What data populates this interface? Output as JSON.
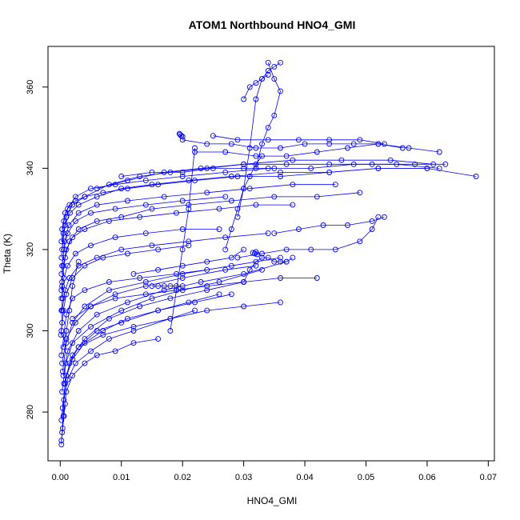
{
  "chart_data": {
    "type": "scatter",
    "mode": "lines+markers",
    "title": "ATOM1 Northbound HNO4_GMI",
    "xlabel": "HNO4_GMI",
    "ylabel": "Theta (K)",
    "xlim": [
      -0.002,
      0.071
    ],
    "ylim": [
      268,
      370
    ],
    "xticks": [
      0.0,
      0.01,
      0.02,
      0.03,
      0.04,
      0.05,
      0.06,
      0.07
    ],
    "xtick_labels": [
      "0.00",
      "0.01",
      "0.02",
      "0.03",
      "0.04",
      "0.05",
      "0.06",
      "0.07"
    ],
    "yticks": [
      280,
      300,
      320,
      340,
      360
    ],
    "ytick_labels": [
      "280",
      "300",
      "320",
      "340",
      "360"
    ],
    "grid": false,
    "color": "#0000ff",
    "series": [
      {
        "x": [
          0.0002,
          0.0005,
          0.001,
          0.002,
          0.004,
          0.006,
          0.009,
          0.012,
          0.016
        ],
        "y": [
          272,
          279,
          285,
          289,
          292,
          294,
          295,
          297,
          298
        ]
      },
      {
        "x": [
          0.0003,
          0.0006,
          0.0012,
          0.0025,
          0.005,
          0.008,
          0.012,
          0.018,
          0.022
        ],
        "y": [
          275,
          283,
          288,
          292,
          295,
          298,
          300,
          303,
          305
        ]
      },
      {
        "x": [
          0.0002,
          0.0008,
          0.0015,
          0.003,
          0.006,
          0.01,
          0.016,
          0.021,
          0.026
        ],
        "y": [
          278,
          287,
          292,
          296,
          300,
          302,
          305,
          307,
          309
        ]
      },
      {
        "x": [
          0.0004,
          0.001,
          0.002,
          0.004,
          0.008,
          0.013,
          0.018,
          0.024,
          0.03
        ],
        "y": [
          281,
          289,
          294,
          298,
          303,
          306,
          308,
          310,
          312
        ]
      },
      {
        "x": [
          0.0003,
          0.0009,
          0.002,
          0.005,
          0.01,
          0.015,
          0.02,
          0.026,
          0.033
        ],
        "y": [
          285,
          292,
          297,
          301,
          305,
          308,
          310,
          312,
          315
        ]
      },
      {
        "x": [
          0.0005,
          0.0012,
          0.003,
          0.006,
          0.011,
          0.017,
          0.023,
          0.03,
          0.037
        ],
        "y": [
          289,
          295,
          300,
          304,
          307,
          310,
          312,
          314,
          317
        ]
      },
      {
        "x": [
          0.0003,
          0.001,
          0.0025,
          0.005,
          0.009,
          0.014,
          0.02,
          0.027,
          0.032
        ],
        "y": [
          292,
          298,
          302,
          306,
          309,
          311,
          313,
          315,
          316
        ]
      },
      {
        "x": [
          0.0002,
          0.0006,
          0.001,
          0.002,
          0.004,
          0.008,
          0.013,
          0.019,
          0.024
        ],
        "y": [
          294,
          299,
          304,
          308,
          310,
          312,
          313,
          314,
          315
        ]
      },
      {
        "x": [
          0.0004,
          0.001,
          0.002,
          0.004,
          0.008,
          0.014,
          0.02,
          0.028,
          0.036
        ],
        "y": [
          290,
          297,
          302,
          306,
          310,
          312,
          314,
          316,
          318
        ]
      },
      {
        "x": [
          0.0006,
          0.002,
          0.004,
          0.007,
          0.011,
          0.016,
          0.022,
          0.028
        ],
        "y": [
          287,
          293,
          297,
          300,
          303,
          305,
          307,
          309
        ]
      },
      {
        "x": [
          0.0002,
          0.0005,
          0.001,
          0.002,
          0.004,
          0.007,
          0.011,
          0.016,
          0.021
        ],
        "y": [
          300,
          305,
          309,
          313,
          316,
          318,
          319,
          320,
          321
        ]
      },
      {
        "x": [
          0.0003,
          0.0008,
          0.0015,
          0.003,
          0.006,
          0.01,
          0.015,
          0.021,
          0.027,
          0.034
        ],
        "y": [
          305,
          310,
          313,
          316,
          318,
          320,
          321,
          322,
          323,
          324
        ]
      },
      {
        "x": [
          0.0002,
          0.0006,
          0.0012,
          0.0025,
          0.005,
          0.009,
          0.014,
          0.02,
          0.026
        ],
        "y": [
          308,
          313,
          316,
          319,
          321,
          323,
          324,
          325,
          325
        ]
      },
      {
        "x": [
          0.0002,
          0.0005,
          0.001,
          0.002,
          0.004,
          0.008,
          0.013,
          0.019,
          0.026,
          0.032,
          0.038
        ],
        "y": [
          310,
          316,
          320,
          323,
          325,
          327,
          328,
          329,
          330,
          331,
          331
        ]
      },
      {
        "x": [
          0.0003,
          0.0008,
          0.0015,
          0.003,
          0.006,
          0.01,
          0.015,
          0.021,
          0.028,
          0.035,
          0.042,
          0.049
        ],
        "y": [
          312,
          318,
          322,
          325,
          327,
          328,
          330,
          331,
          332,
          333,
          333,
          334
        ]
      },
      {
        "x": [
          0.0002,
          0.0006,
          0.0012,
          0.0025,
          0.005,
          0.009,
          0.014,
          0.02,
          0.027
        ],
        "y": [
          314,
          320,
          324,
          327,
          329,
          330,
          331,
          332,
          333
        ]
      },
      {
        "x": [
          0.0003,
          0.0007,
          0.0014,
          0.003,
          0.006,
          0.011,
          0.017,
          0.024,
          0.031,
          0.038,
          0.045
        ],
        "y": [
          316,
          322,
          326,
          329,
          331,
          332,
          333,
          334,
          335,
          336,
          336
        ]
      },
      {
        "x": [
          0.0002,
          0.0005,
          0.001,
          0.002,
          0.004,
          0.007,
          0.011,
          0.016,
          0.022,
          0.029,
          0.036,
          0.044,
          0.052,
          0.06
        ],
        "y": [
          318,
          324,
          328,
          331,
          333,
          334,
          335,
          336,
          337,
          338,
          338,
          339,
          340,
          340
        ]
      },
      {
        "x": [
          0.0003,
          0.0008,
          0.0016,
          0.003,
          0.006,
          0.01,
          0.015,
          0.021,
          0.028,
          0.036,
          0.044,
          0.052,
          0.06,
          0.068
        ],
        "y": [
          320,
          326,
          329,
          331,
          333,
          335,
          336,
          337,
          338,
          339,
          339,
          340,
          340,
          338
        ]
      },
      {
        "x": [
          0.0002,
          0.0006,
          0.0012,
          0.0025,
          0.005,
          0.009,
          0.014,
          0.02,
          0.027,
          0.034,
          0.041,
          0.048,
          0.055,
          0.062
        ],
        "y": [
          322,
          327,
          330,
          333,
          335,
          336,
          337,
          338,
          339,
          340,
          340,
          341,
          341,
          340
        ]
      },
      {
        "x": [
          0.004,
          0.008,
          0.013,
          0.018,
          0.024,
          0.03,
          0.037,
          0.044,
          0.051,
          0.058,
          0.063
        ],
        "y": [
          333,
          336,
          338,
          339,
          340,
          341,
          341,
          341,
          341,
          341,
          341
        ]
      },
      {
        "x": [
          0.006,
          0.011,
          0.017,
          0.023,
          0.03,
          0.038,
          0.046,
          0.054,
          0.061
        ],
        "y": [
          335,
          337,
          339,
          340,
          341,
          342,
          342,
          342,
          341
        ]
      },
      {
        "x": [
          0.02,
          0.024,
          0.028,
          0.032,
          0.036,
          0.04,
          0.044,
          0.048,
          0.052,
          0.056
        ],
        "y": [
          347,
          346,
          346,
          345,
          345,
          346,
          346,
          346,
          346,
          345
        ]
      },
      {
        "x": [
          0.022,
          0.027,
          0.032,
          0.037,
          0.042,
          0.047,
          0.052,
          0.057,
          0.062
        ],
        "y": [
          344,
          344,
          343,
          343,
          344,
          345,
          346,
          345,
          344
        ]
      },
      {
        "x": [
          0.0195,
          0.0196,
          0.0198,
          0.02
        ],
        "y": [
          348.5,
          348.3,
          348.0,
          347.8
        ]
      },
      {
        "x": [
          0.025,
          0.029,
          0.034,
          0.039,
          0.044,
          0.049,
          0.053
        ],
        "y": [
          348,
          347,
          347,
          347,
          347,
          347,
          346
        ]
      },
      {
        "x": [
          0.029,
          0.03,
          0.031,
          0.032,
          0.033,
          0.034,
          0.035,
          0.036
        ],
        "y": [
          328,
          335,
          345,
          357,
          362,
          364,
          365,
          366
        ]
      },
      {
        "x": [
          0.034,
          0.035,
          0.036,
          0.035,
          0.034,
          0.033,
          0.032
        ],
        "y": [
          366,
          362,
          359,
          353,
          350,
          346,
          340
        ]
      },
      {
        "x": [
          0.03,
          0.031,
          0.032,
          0.033,
          0.034
        ],
        "y": [
          357,
          360,
          361,
          362,
          363
        ]
      },
      {
        "x": [
          0.018,
          0.019,
          0.02,
          0.021,
          0.022
        ],
        "y": [
          300,
          310,
          320,
          330,
          345
        ]
      },
      {
        "x": [
          0.027,
          0.028,
          0.029,
          0.03,
          0.031,
          0.032,
          0.033
        ],
        "y": [
          320,
          325,
          330,
          335,
          338,
          341,
          343
        ]
      },
      {
        "x": [
          0.029,
          0.033,
          0.037,
          0.041,
          0.045,
          0.049,
          0.051,
          0.052
        ],
        "y": [
          318,
          319,
          320,
          320,
          320,
          322,
          325,
          328
        ]
      },
      {
        "x": [
          0.03,
          0.031,
          0.032,
          0.033,
          0.034,
          0.035,
          0.036,
          0.037,
          0.038
        ],
        "y": [
          312,
          315,
          317,
          318,
          318,
          317,
          317,
          317,
          318
        ]
      },
      {
        "x": [
          0.0315,
          0.0318,
          0.032,
          0.0322
        ],
        "y": [
          319.2,
          319.0,
          319.4,
          318.8
        ]
      },
      {
        "x": [
          0.015,
          0.016,
          0.017,
          0.018,
          0.019,
          0.02
        ],
        "y": [
          311,
          311,
          311,
          311,
          311,
          311
        ]
      },
      {
        "x": [
          0.035,
          0.039,
          0.043,
          0.047,
          0.051,
          0.053
        ],
        "y": [
          324,
          325,
          326,
          326,
          327,
          328
        ]
      },
      {
        "x": [
          0.012,
          0.016,
          0.02,
          0.024,
          0.028,
          0.03
        ],
        "y": [
          314,
          315,
          316,
          317,
          318,
          320
        ]
      },
      {
        "x": [
          0.0005,
          0.001,
          0.0015,
          0.002,
          0.003
        ],
        "y": [
          296,
          300,
          305,
          311,
          317
        ]
      },
      {
        "x": [
          0.0002,
          0.0004,
          0.0006,
          0.0008
        ],
        "y": [
          273,
          276,
          279,
          282
        ]
      },
      {
        "x": [
          0.0001,
          0.0003,
          0.0002,
          0.0004,
          0.0003
        ],
        "y": [
          299,
          302,
          305,
          308,
          311
        ]
      },
      {
        "x": [
          0.002,
          0.005,
          0.009,
          0.014,
          0.019,
          0.024,
          0.03,
          0.036,
          0.042
        ],
        "y": [
          303,
          306,
          308,
          309,
          310,
          311,
          312,
          313,
          313
        ]
      },
      {
        "x": [
          0.003,
          0.007,
          0.012,
          0.018,
          0.024,
          0.03,
          0.036
        ],
        "y": [
          296,
          299,
          301,
          303,
          305,
          306,
          307
        ]
      },
      {
        "x": [
          0.01,
          0.015,
          0.02,
          0.025,
          0.03,
          0.035
        ],
        "y": [
          338,
          339,
          339,
          340,
          340,
          340
        ]
      },
      {
        "x": [
          0.0003,
          0.0008,
          0.0015,
          0.0025,
          0.004
        ],
        "y": [
          325,
          329,
          331,
          332,
          333
        ]
      }
    ]
  }
}
